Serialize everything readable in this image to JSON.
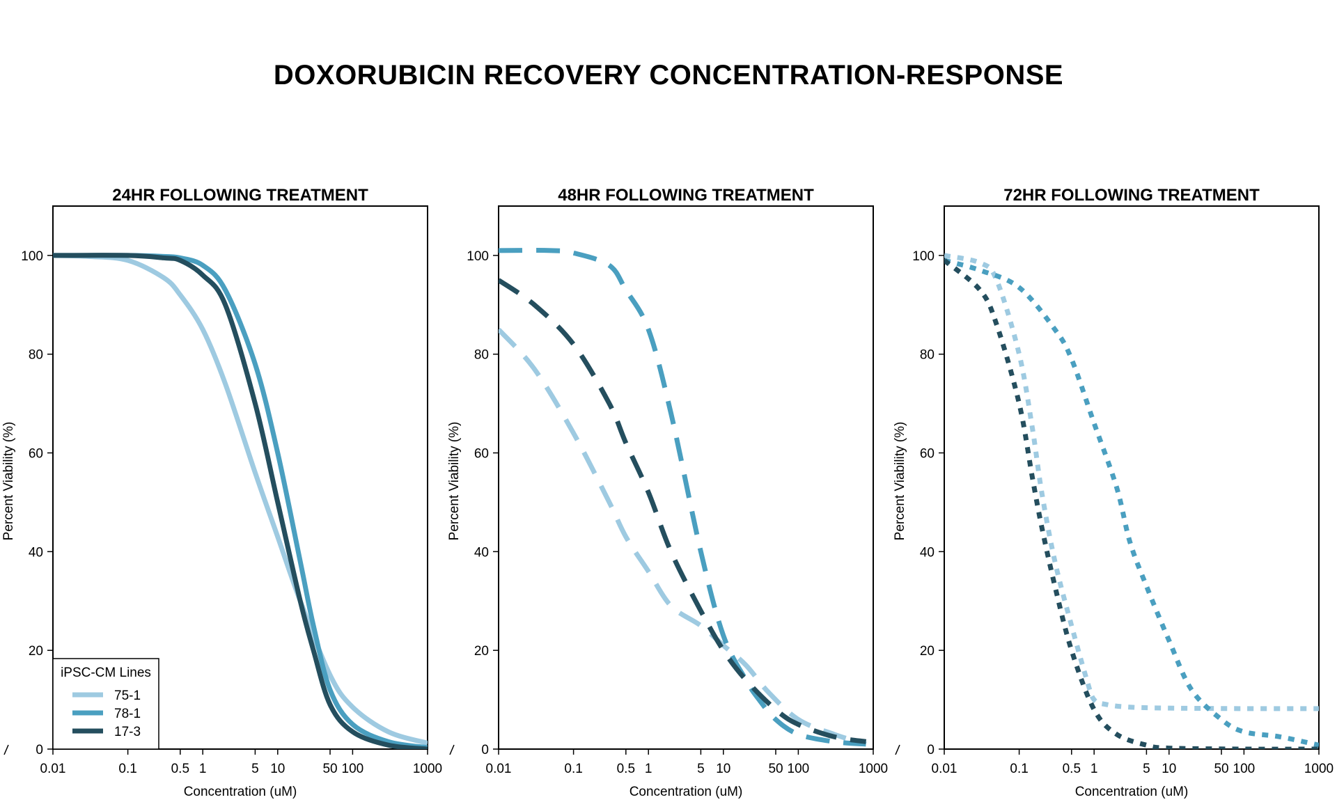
{
  "title": "DOXORUBICIN RECOVERY CONCENTRATION-RESPONSE",
  "colors": {
    "75-1": "#9ecae1",
    "78-1": "#4a9fc0",
    "17-3": "#244e5e"
  },
  "legend": {
    "title": "iPSC-CM Lines",
    "items": [
      "75-1",
      "78-1",
      "17-3"
    ]
  },
  "chart_data": [
    {
      "type": "line",
      "title": "24HR FOLLOWING TREATMENT",
      "xlabel": "Concentration (uM)",
      "ylabel": "Percent Viability (%)",
      "xscale": "log",
      "xlim": [
        0.01,
        1000
      ],
      "ylim": [
        0,
        110
      ],
      "x_ticks": [
        0.01,
        0.1,
        0.5,
        1,
        5,
        10,
        50,
        100,
        1000
      ],
      "x_tick_labels": [
        "0.01",
        "0.1",
        "0.5",
        "1",
        "5",
        "10",
        "50",
        "100",
        "1000"
      ],
      "y_ticks": [
        0,
        20,
        40,
        60,
        80,
        100
      ],
      "y_tick_labels": [
        "0",
        "20",
        "40",
        "60",
        "80",
        "100"
      ],
      "line_style": "solid",
      "legend_position": "bottom-left",
      "series": [
        {
          "name": "75-1",
          "x": [
            0.01,
            0.03,
            0.1,
            0.3,
            0.5,
            1,
            2,
            5,
            10,
            20,
            50,
            100,
            300,
            1000
          ],
          "y": [
            100,
            99.8,
            99.0,
            95.5,
            92,
            85,
            74,
            56,
            43,
            30,
            15,
            8.5,
            3.5,
            1.2
          ]
        },
        {
          "name": "78-1",
          "x": [
            0.01,
            0.1,
            0.3,
            0.5,
            1,
            2,
            5,
            10,
            20,
            30,
            50,
            100,
            300,
            1000
          ],
          "y": [
            100,
            100,
            99.8,
            99.5,
            98,
            93,
            78,
            60,
            38,
            25,
            12,
            5,
            1.5,
            0.3
          ]
        },
        {
          "name": "17-3",
          "x": [
            0.01,
            0.1,
            0.3,
            0.5,
            1,
            2,
            5,
            10,
            20,
            30,
            50,
            100,
            300,
            1000
          ],
          "y": [
            100,
            100,
            99.5,
            99,
            96,
            90,
            70,
            50,
            30,
            20,
            9,
            3.5,
            0.8,
            0
          ]
        }
      ]
    },
    {
      "type": "line",
      "title": "48HR FOLLOWING TREATMENT",
      "xlabel": "Concentration (uM)",
      "ylabel": "Percent Viability (%)",
      "xscale": "log",
      "xlim": [
        0.01,
        1000
      ],
      "ylim": [
        0,
        110
      ],
      "x_ticks": [
        0.01,
        0.1,
        0.5,
        1,
        5,
        10,
        50,
        100,
        1000
      ],
      "x_tick_labels": [
        "0.01",
        "0.1",
        "0.5",
        "1",
        "5",
        "10",
        "50",
        "100",
        "1000"
      ],
      "y_ticks": [
        0,
        20,
        40,
        60,
        80,
        100
      ],
      "y_tick_labels": [
        "0",
        "20",
        "40",
        "60",
        "80",
        "100"
      ],
      "line_style": "dashed",
      "series": [
        {
          "name": "75-1",
          "x": [
            0.01,
            0.03,
            0.1,
            0.3,
            0.5,
            1,
            2,
            5,
            10,
            20,
            40,
            100,
            300,
            800
          ],
          "y": [
            85,
            77,
            64,
            50,
            43,
            36,
            29,
            25,
            21,
            17,
            11.5,
            6,
            3,
            1
          ]
        },
        {
          "name": "78-1",
          "x": [
            0.01,
            0.05,
            0.1,
            0.3,
            0.5,
            1,
            2,
            5,
            10,
            20,
            30,
            50,
            100,
            300,
            800
          ],
          "y": [
            101,
            101,
            100.5,
            98,
            93,
            85,
            68,
            40,
            23,
            14,
            10,
            6,
            3,
            1.5,
            1
          ]
        },
        {
          "name": "17-3",
          "x": [
            0.01,
            0.03,
            0.1,
            0.3,
            0.5,
            1,
            2,
            5,
            10,
            20,
            50,
            100,
            300,
            800
          ],
          "y": [
            95,
            90,
            82,
            70,
            62,
            52,
            40,
            28,
            20,
            14,
            8,
            5,
            2.5,
            1.5
          ]
        }
      ]
    },
    {
      "type": "line",
      "title": "72HR FOLLOWING TREATMENT",
      "xlabel": "Concentration (uM)",
      "ylabel": "Percent Viability (%)",
      "xscale": "log",
      "xlim": [
        0.01,
        1000
      ],
      "ylim": [
        0,
        110
      ],
      "x_ticks": [
        0.01,
        0.1,
        0.5,
        1,
        5,
        10,
        50,
        100,
        1000
      ],
      "x_tick_labels": [
        "0.01",
        "0.1",
        "0.5",
        "1",
        "5",
        "10",
        "50",
        "100",
        "1000"
      ],
      "y_ticks": [
        0,
        20,
        40,
        60,
        80,
        100
      ],
      "y_tick_labels": [
        "0",
        "20",
        "40",
        "60",
        "80",
        "100"
      ],
      "line_style": "dotted",
      "series": [
        {
          "name": "75-1",
          "x": [
            0.01,
            0.03,
            0.05,
            0.1,
            0.15,
            0.2,
            0.3,
            0.5,
            0.8,
            1,
            1.5,
            3,
            10,
            100,
            1000
          ],
          "y": [
            100,
            98.5,
            95,
            80,
            65,
            52,
            38,
            25,
            14,
            10,
            9,
            8.5,
            8.3,
            8.2,
            8.2
          ]
        },
        {
          "name": "78-1",
          "x": [
            0.01,
            0.03,
            0.1,
            0.3,
            0.5,
            1,
            2,
            3,
            5,
            10,
            20,
            50,
            100,
            300,
            1000
          ],
          "y": [
            99,
            97,
            93.5,
            85,
            79,
            66,
            53,
            42,
            33,
            22,
            12,
            6,
            3.5,
            2.5,
            0.8
          ]
        },
        {
          "name": "17-3",
          "x": [
            0.01,
            0.03,
            0.05,
            0.1,
            0.15,
            0.2,
            0.3,
            0.5,
            1,
            2,
            5,
            10,
            100,
            1000
          ],
          "y": [
            99,
            93,
            86,
            70,
            55,
            45,
            33,
            20,
            8,
            3,
            0.8,
            0.2,
            0,
            0
          ]
        }
      ]
    }
  ]
}
